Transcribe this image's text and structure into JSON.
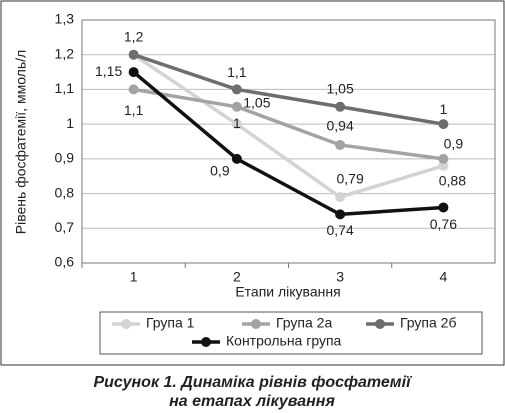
{
  "chart_data": {
    "type": "line",
    "y_label": "Рівень фосфатемії, ммоль/л",
    "x_label": "Етапи лікування",
    "categories": [
      "1",
      "2",
      "3",
      "4"
    ],
    "ylim": [
      0.6,
      1.3
    ],
    "yticks": [
      {
        "value": 0.6,
        "label": "0,6"
      },
      {
        "value": 0.7,
        "label": "0,7"
      },
      {
        "value": 0.8,
        "label": "0,8"
      },
      {
        "value": 0.9,
        "label": "0,9"
      },
      1,
      {
        "value": 1.1,
        "label": "1,1"
      },
      {
        "value": 1.2,
        "label": "1,2"
      },
      {
        "value": 1.3,
        "label": "1,3"
      }
    ],
    "grid": true,
    "series": [
      {
        "name": "Група 1",
        "color": "#d3d3d3",
        "values": [
          1.2,
          1.0,
          0.79,
          0.88
        ],
        "value_labels": [
          null,
          "1",
          "0,79",
          "0,88"
        ]
      },
      {
        "name": "Група 2а",
        "color": "#a3a3a3",
        "values": [
          1.1,
          1.05,
          0.94,
          0.9
        ],
        "value_labels": [
          "1,1",
          "1,05",
          "0,94",
          "0,9"
        ]
      },
      {
        "name": "Група 2б",
        "color": "#6e6e6e",
        "values": [
          1.2,
          1.1,
          1.05,
          1.0
        ],
        "value_labels": [
          "1,2",
          "1,1",
          "1,05",
          "1"
        ]
      },
      {
        "name": "Контрольна група",
        "color": "#111111",
        "values": [
          1.15,
          0.9,
          0.74,
          0.76
        ],
        "value_labels": [
          "1,15",
          "0,9",
          "0,74",
          "0,76"
        ]
      }
    ],
    "caption": [
      "Рисунок 1.  Динаміка рівнів фосфатемії",
      "на етапах лікування"
    ]
  }
}
